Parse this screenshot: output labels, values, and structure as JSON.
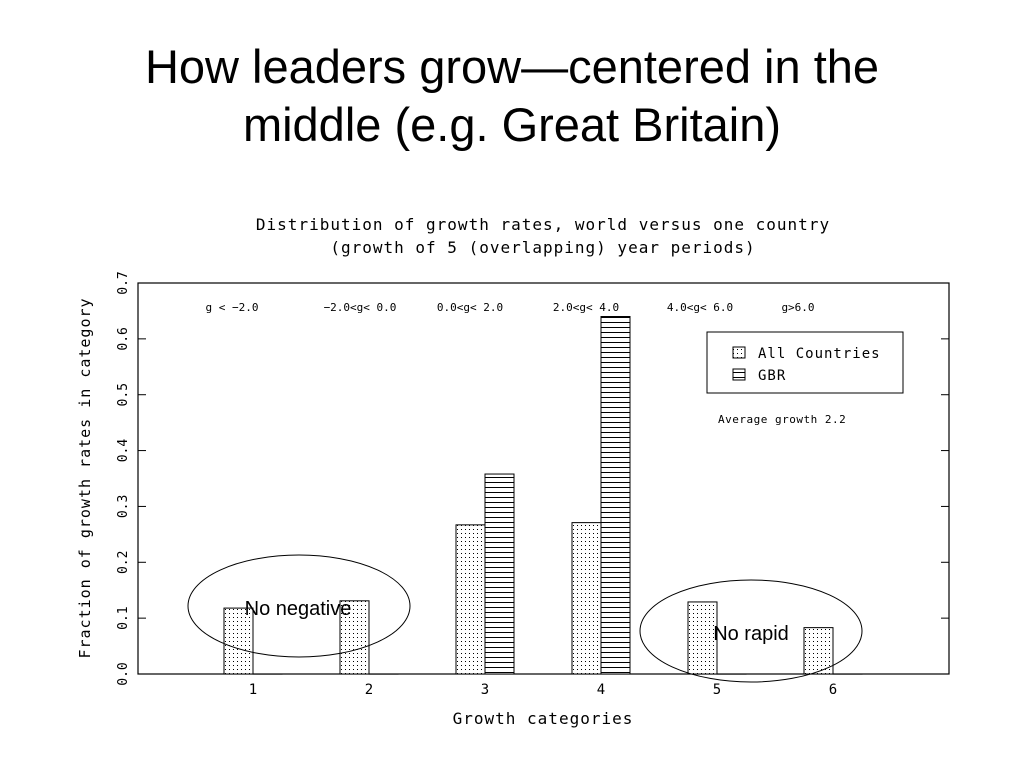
{
  "slide": {
    "title_line1": "How leaders grow—centered in the",
    "title_line2": "middle (e.g. Great Britain)"
  },
  "chart_data": {
    "type": "bar",
    "title": "Distribution of growth rates, world versus one country",
    "subtitle": "(growth of 5 (overlapping) year periods)",
    "xlabel": "Growth categories",
    "ylabel": "Fraction of growth rates in category",
    "ylim": [
      0,
      0.7
    ],
    "yticks": [
      "0.0",
      "0.1",
      "0.2",
      "0.3",
      "0.4",
      "0.5",
      "0.6",
      "0.7"
    ],
    "categories": [
      "1",
      "2",
      "3",
      "4",
      "5",
      "6"
    ],
    "category_labels": [
      "g < −2.0",
      "−2.0<g< 0.0",
      "0.0<g< 2.0",
      "2.0<g< 4.0",
      "4.0<g< 6.0",
      "g>6.0"
    ],
    "series": [
      {
        "name": "All Countries",
        "pattern": "dotted",
        "values": [
          0.118,
          0.131,
          0.267,
          0.271,
          0.129,
          0.083
        ]
      },
      {
        "name": "GBR",
        "pattern": "horizontal-lines",
        "values": [
          0.0,
          0.0,
          0.358,
          0.64,
          0.0,
          0.0
        ]
      }
    ],
    "legend_position": "top-right",
    "annotation": "Average growth 2.2",
    "callouts": [
      {
        "text": "No negative",
        "around_categories": [
          "1",
          "2"
        ]
      },
      {
        "text": "No rapid",
        "around_categories": [
          "5",
          "6"
        ]
      }
    ],
    "grid": false,
    "colors": {
      "ink": "#000000",
      "background": "#ffffff"
    }
  }
}
